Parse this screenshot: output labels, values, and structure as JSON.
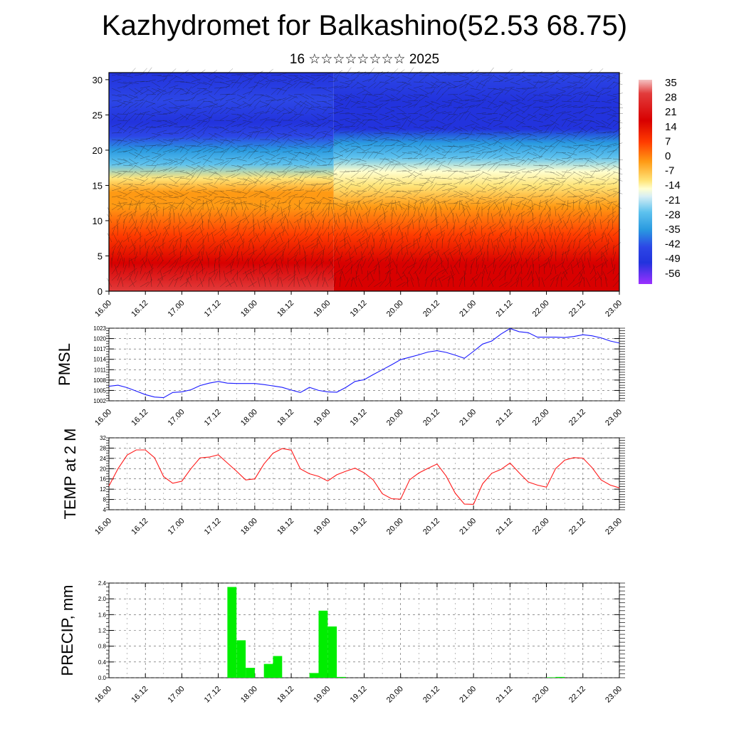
{
  "header": {
    "title": "Kazhydromet for Balkashino(52.53 68.75)",
    "subtitle": "16 ☆☆☆☆☆☆☆☆ 2025"
  },
  "colors": {
    "pmsl_line": "#1a1aff",
    "temp_line": "#ff1a1a",
    "precip_bar": "#00ee00",
    "frame": "#000000"
  },
  "time_ticks": [
    "16.00",
    "16.12",
    "17.00",
    "17.12",
    "18.00",
    "18.12",
    "19.00",
    "19.12",
    "20.00",
    "20.12",
    "21.00",
    "21.12",
    "22.00",
    "22.12",
    "23.00"
  ],
  "chart_data": [
    {
      "type": "heatmap",
      "name": "cross-section",
      "ylim": [
        0,
        31
      ],
      "yticks": [
        0,
        5,
        10,
        15,
        20,
        25,
        30
      ],
      "xcategories": [
        "16.00",
        "16.12",
        "17.00",
        "17.12",
        "18.00",
        "18.12",
        "19.00",
        "19.12",
        "20.00",
        "20.12",
        "21.00",
        "21.12",
        "22.00",
        "22.12",
        "23.00"
      ],
      "colorbar_labels": [
        "35",
        "28",
        "21",
        "14",
        "7",
        "0",
        "-7",
        "-14",
        "-21",
        "-28",
        "-35",
        "-42",
        "-49",
        "-56"
      ],
      "colorbar_range": [
        -63,
        42
      ],
      "colorbar_stops": [
        {
          "v": 42,
          "c": "#f4c2c2"
        },
        {
          "v": 35,
          "c": "#e23c3c"
        },
        {
          "v": 21,
          "c": "#d80000"
        },
        {
          "v": 10,
          "c": "#ff3c00"
        },
        {
          "v": 0,
          "c": "#ff9a14"
        },
        {
          "v": -10,
          "c": "#ffe57a"
        },
        {
          "v": -14,
          "c": "#ffffd0"
        },
        {
          "v": -18,
          "c": "#d6eef5"
        },
        {
          "v": -26,
          "c": "#5ec2ee"
        },
        {
          "v": -35,
          "c": "#2a9ae0"
        },
        {
          "v": -44,
          "c": "#2c46e6"
        },
        {
          "v": -52,
          "c": "#2233dd"
        },
        {
          "v": -63,
          "c": "#9b30ff"
        }
      ],
      "grid": false
    },
    {
      "type": "line",
      "ylabel": "PMSL",
      "ylim": [
        1002,
        1023
      ],
      "yticks": [
        1002,
        1005,
        1008,
        1011,
        1014,
        1017,
        1020,
        1023
      ],
      "x": [
        0,
        3,
        6,
        9,
        12,
        15,
        18,
        21,
        24,
        27,
        30,
        33,
        36,
        39,
        42,
        45,
        48,
        51,
        54,
        57,
        60,
        63,
        66,
        69,
        72,
        75,
        78,
        81,
        84,
        87,
        90,
        93,
        96,
        99,
        102,
        105,
        108,
        111,
        114,
        117,
        120,
        123,
        126,
        129,
        132,
        135,
        138,
        141,
        144,
        147,
        150,
        153,
        156,
        159,
        162,
        165,
        168
      ],
      "series": [
        {
          "values": [
            1006.2,
            1006.5,
            1005.8,
            1004.8,
            1003.8,
            1003.1,
            1002.9,
            1004.4,
            1004.6,
            1005.2,
            1006.4,
            1007.1,
            1007.6,
            1007.1,
            1007.0,
            1007.0,
            1007.0,
            1006.7,
            1006.3,
            1005.9,
            1005.1,
            1004.4,
            1005.9,
            1005.0,
            1004.6,
            1004.5,
            1005.9,
            1007.6,
            1008.1,
            1009.6,
            1011.0,
            1012.4,
            1013.9,
            1014.6,
            1015.3,
            1016.1,
            1016.5,
            1016.0,
            1015.2,
            1014.3,
            1016.3,
            1018.4,
            1019.3,
            1021.3,
            1022.9,
            1022.0,
            1021.7,
            1020.4,
            1020.4,
            1020.4,
            1020.3,
            1020.6,
            1021.1,
            1020.8,
            1020.2,
            1019.3,
            1018.7
          ]
        },
        {
          "values_note_hidden": []
        }
      ]
    },
    {
      "type": "line",
      "ylabel": "TEMP at 2 M",
      "ylim": [
        4,
        32
      ],
      "yticks": [
        4,
        8,
        12,
        16,
        20,
        24,
        28,
        32
      ],
      "x": [
        0,
        3,
        6,
        9,
        12,
        15,
        18,
        21,
        24,
        27,
        30,
        33,
        36,
        39,
        42,
        45,
        48,
        51,
        54,
        57,
        60,
        63,
        66,
        69,
        72,
        75,
        78,
        81,
        84,
        87,
        90,
        93,
        96,
        99,
        102,
        105,
        108,
        111,
        114,
        117,
        120,
        123,
        126,
        129,
        132,
        135,
        138,
        141,
        144,
        147,
        150,
        153,
        156,
        159,
        162,
        165,
        168
      ],
      "series": [
        {
          "values": [
            13.2,
            20.0,
            25.3,
            27.3,
            27.3,
            24.3,
            16.9,
            14.3,
            15.1,
            20.0,
            24.2,
            24.5,
            25.4,
            22.2,
            19.0,
            15.6,
            16.0,
            21.8,
            26.0,
            27.8,
            27.2,
            19.9,
            18.0,
            17.0,
            15.2,
            17.6,
            19.0,
            20.2,
            18.4,
            15.6,
            10.2,
            8.3,
            8.1,
            15.7,
            18.3,
            20.1,
            21.8,
            17.1,
            10.4,
            6.2,
            6.1,
            14.1,
            18.2,
            19.7,
            22.2,
            18.4,
            14.8,
            13.6,
            12.8,
            20.0,
            23.3,
            24.3,
            24.1,
            20.4,
            15.6,
            13.6,
            12.5
          ]
        }
      ]
    },
    {
      "type": "bar",
      "ylabel": "PRECIP, mm",
      "ylim": [
        0.0,
        2.4
      ],
      "yticks": [
        "0.0",
        "0.4",
        "0.8",
        "1.2",
        "1.6",
        "2.0",
        "2.4"
      ],
      "x": [
        0,
        3,
        6,
        9,
        12,
        15,
        18,
        21,
        24,
        27,
        30,
        33,
        36,
        39,
        42,
        45,
        48,
        51,
        54,
        57,
        60,
        63,
        66,
        69,
        72,
        75,
        78,
        81,
        84,
        87,
        90,
        93,
        96,
        99,
        102,
        105,
        108,
        111,
        114,
        117,
        120,
        123,
        126,
        129,
        132,
        135,
        138,
        141,
        144,
        147,
        150,
        153,
        156,
        159,
        162,
        165
      ],
      "series": [
        {
          "values": [
            0,
            0,
            0,
            0,
            0,
            0,
            0,
            0,
            0,
            0,
            0,
            0,
            0,
            2.3,
            0.95,
            0.25,
            0,
            0.35,
            0.55,
            0,
            0,
            0,
            0.12,
            1.7,
            1.3,
            0.02,
            0,
            0,
            0,
            0,
            0,
            0,
            0,
            0,
            0,
            0,
            0,
            0,
            0,
            0,
            0,
            0,
            0,
            0,
            0,
            0,
            0,
            0,
            0.01,
            0.02,
            0,
            0,
            0,
            0,
            0,
            0
          ]
        }
      ]
    }
  ]
}
